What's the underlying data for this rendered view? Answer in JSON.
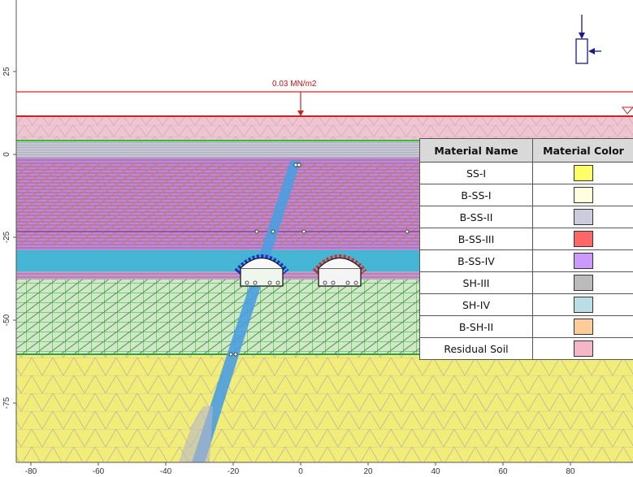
{
  "load": {
    "label": "0.03 MN/m2"
  },
  "x_axis_ticks": [
    "-80",
    "-60",
    "-40",
    "-20",
    "0",
    "20",
    "40",
    "60",
    "80"
  ],
  "y_axis_ticks": [
    "25",
    "0",
    "-25",
    "-50",
    "-75"
  ],
  "legend": {
    "header_name": "Material Name",
    "header_color": "Material Color",
    "rows": [
      {
        "name": "SS-I",
        "color": "#ffff66"
      },
      {
        "name": "B-SS-I",
        "color": "#ffffdd"
      },
      {
        "name": "B-SS-II",
        "color": "#ccccdd"
      },
      {
        "name": "B-SS-III",
        "color": "#ff6666"
      },
      {
        "name": "B-SS-IV",
        "color": "#cc99ff"
      },
      {
        "name": "SH-III",
        "color": "#bbbbbb"
      },
      {
        "name": "SH-IV",
        "color": "#bbdde6"
      },
      {
        "name": "B-SH-II",
        "color": "#ffcc99"
      },
      {
        "name": "Residual Soil",
        "color": "#f4b7c8"
      }
    ]
  },
  "colors": {
    "residual_soil": "#f0c4d0",
    "grey_band": "#c8c8d4",
    "purple_zone": "#c090d0",
    "cyan_band": "#3cb8d8",
    "green_zone": "#d0e8c8",
    "yellow_zone": "#f2ec78",
    "fault": "#4a9ee0",
    "load_line": "#e02020",
    "tunnel_support_left": "#2030c0",
    "tunnel_support_right": "#d03030"
  }
}
